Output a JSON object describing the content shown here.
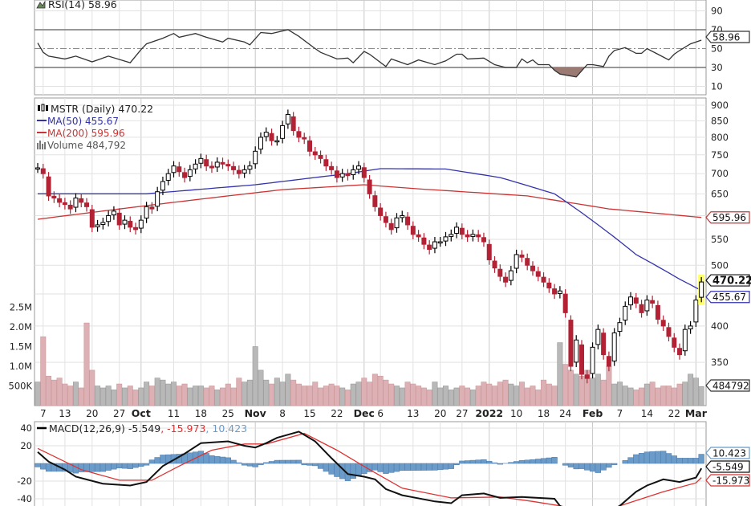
{
  "chart_data": {
    "type": "candlestick",
    "symbol": "MSTR",
    "title": "MSTR (Daily) 470.22",
    "last_price": "470.22",
    "legend": {
      "main": "MSTR (Daily) 470.22",
      "ma50": "MA(50) 455.67",
      "ma200": "MA(200) 595.96",
      "volume": "Volume 484,792",
      "rsi": "RSI(14) 58.96",
      "macd_name": "MACD(12,26,9)",
      "macd_val": " -5.549",
      "macd_sig": ", -15.973",
      "macd_hist": ", 10.423"
    },
    "tags": {
      "price": "470.22",
      "ma50": "455.67",
      "ma200": "595.96",
      "volume": "484792",
      "rsi": "58.96",
      "macd_hist": "10.423",
      "macd": "-5.549",
      "macd_signal": "-15.973"
    },
    "price_ticks": [
      "900",
      "850",
      "800",
      "750",
      "700",
      "650",
      "550",
      "500",
      "400",
      "350"
    ],
    "volume_ticks": [
      "2.5M",
      "2.0M",
      "1.5M",
      "1.0M",
      "500K"
    ],
    "volume_tick_values": [
      2500,
      2000,
      1500,
      1000,
      500
    ],
    "rsi_ticks": [
      "90",
      "70",
      "50",
      "30",
      "10"
    ],
    "macd_ticks": [
      "40",
      "20",
      "-20",
      "-40"
    ],
    "macd_tick_values": [
      40,
      20,
      -20,
      -40
    ],
    "x_labels": [
      {
        "t": "7",
        "i": 1,
        "bold": false
      },
      {
        "t": "13",
        "i": 5,
        "bold": false
      },
      {
        "t": "20",
        "i": 10,
        "bold": false
      },
      {
        "t": "27",
        "i": 15,
        "bold": false
      },
      {
        "t": "Oct",
        "i": 19,
        "bold": true
      },
      {
        "t": "11",
        "i": 25,
        "bold": false
      },
      {
        "t": "18",
        "i": 30,
        "bold": false
      },
      {
        "t": "25",
        "i": 35,
        "bold": false
      },
      {
        "t": "Nov",
        "i": 40,
        "bold": true
      },
      {
        "t": "8",
        "i": 45,
        "bold": false
      },
      {
        "t": "15",
        "i": 50,
        "bold": false
      },
      {
        "t": "22",
        "i": 55,
        "bold": false
      },
      {
        "t": "Dec",
        "i": 60,
        "bold": true
      },
      {
        "t": "6",
        "i": 63,
        "bold": false
      },
      {
        "t": "13",
        "i": 69,
        "bold": false
      },
      {
        "t": "20",
        "i": 74,
        "bold": false
      },
      {
        "t": "27",
        "i": 78,
        "bold": false
      },
      {
        "t": "2022",
        "i": 83,
        "bold": true
      },
      {
        "t": "10",
        "i": 88,
        "bold": false
      },
      {
        "t": "18",
        "i": 93,
        "bold": false
      },
      {
        "t": "24",
        "i": 97,
        "bold": false
      },
      {
        "t": "Feb",
        "i": 102,
        "bold": true
      },
      {
        "t": "7",
        "i": 107,
        "bold": false
      },
      {
        "t": "14",
        "i": 112,
        "bold": false
      },
      {
        "t": "22",
        "i": 117,
        "bold": false
      },
      {
        "t": "Mar",
        "i": 121,
        "bold": true
      }
    ],
    "close": [
      715,
      700,
      645,
      640,
      630,
      625,
      615,
      640,
      630,
      620,
      575,
      580,
      585,
      600,
      610,
      580,
      590,
      575,
      570,
      590,
      620,
      615,
      655,
      680,
      700,
      720,
      705,
      690,
      710,
      725,
      740,
      720,
      715,
      730,
      725,
      720,
      710,
      700,
      710,
      720,
      760,
      800,
      815,
      790,
      790,
      835,
      870,
      820,
      800,
      795,
      760,
      750,
      740,
      720,
      710,
      690,
      700,
      695,
      710,
      720,
      690,
      650,
      620,
      600,
      585,
      570,
      595,
      600,
      580,
      560,
      555,
      540,
      530,
      545,
      545,
      555,
      560,
      575,
      560,
      555,
      560,
      555,
      545,
      510,
      495,
      480,
      470,
      490,
      520,
      515,
      500,
      490,
      480,
      470,
      460,
      450,
      455,
      420,
      345,
      380,
      335,
      330,
      370,
      395,
      360,
      345,
      390,
      405,
      430,
      445,
      435,
      420,
      440,
      435,
      410,
      400,
      385,
      370,
      360,
      395,
      400,
      440,
      470.22
    ],
    "volume_k": [
      600,
      1750,
      750,
      650,
      700,
      550,
      500,
      600,
      450,
      2100,
      900,
      500,
      450,
      500,
      400,
      550,
      450,
      500,
      400,
      450,
      600,
      500,
      700,
      650,
      550,
      600,
      500,
      550,
      450,
      500,
      500,
      450,
      500,
      400,
      450,
      550,
      450,
      700,
      600,
      650,
      1500,
      900,
      650,
      550,
      700,
      600,
      800,
      650,
      550,
      500,
      500,
      600,
      450,
      500,
      550,
      500,
      450,
      400,
      550,
      600,
      700,
      600,
      800,
      750,
      650,
      550,
      500,
      450,
      600,
      550,
      500,
      450,
      400,
      600,
      450,
      500,
      400,
      450,
      500,
      450,
      400,
      500,
      600,
      550,
      500,
      600,
      650,
      550,
      500,
      600,
      450,
      500,
      400,
      650,
      550,
      500,
      1600,
      1050,
      900,
      800,
      750,
      900,
      700,
      800,
      650,
      1000,
      550,
      600,
      500,
      450,
      400,
      450,
      550,
      600,
      450,
      500,
      500,
      450,
      550,
      600,
      800,
      700,
      485
    ],
    "ma50": [
      [
        0,
        650
      ],
      [
        20,
        650
      ],
      [
        40,
        672
      ],
      [
        57,
        700
      ],
      [
        63,
        713
      ],
      [
        75,
        712
      ],
      [
        85,
        690
      ],
      [
        95,
        650
      ],
      [
        103,
        580
      ],
      [
        110,
        520
      ],
      [
        118,
        475
      ],
      [
        122,
        455.67
      ]
    ],
    "ma200": [
      [
        0,
        592
      ],
      [
        25,
        630
      ],
      [
        45,
        660
      ],
      [
        60,
        672
      ],
      [
        70,
        662
      ],
      [
        90,
        645
      ],
      [
        105,
        615
      ],
      [
        122,
        595.96
      ]
    ],
    "rsi": [
      [
        0,
        56
      ],
      [
        1,
        46
      ],
      [
        2,
        42
      ],
      [
        5,
        39
      ],
      [
        7,
        42
      ],
      [
        10,
        36
      ],
      [
        13,
        42
      ],
      [
        17,
        35
      ],
      [
        19,
        49
      ],
      [
        20,
        55
      ],
      [
        23,
        61
      ],
      [
        25,
        66
      ],
      [
        26,
        62
      ],
      [
        29,
        66
      ],
      [
        31,
        62
      ],
      [
        34,
        57
      ],
      [
        35,
        61
      ],
      [
        38,
        57
      ],
      [
        39,
        54
      ],
      [
        41,
        67
      ],
      [
        43,
        66
      ],
      [
        46,
        70
      ],
      [
        48,
        63
      ],
      [
        51,
        50
      ],
      [
        52,
        46
      ],
      [
        55,
        39
      ],
      [
        57,
        40
      ],
      [
        58,
        35
      ],
      [
        60,
        47
      ],
      [
        61,
        44
      ],
      [
        64,
        31
      ],
      [
        65,
        39
      ],
      [
        67,
        35
      ],
      [
        68,
        33
      ],
      [
        70,
        38
      ],
      [
        73,
        33
      ],
      [
        75,
        37
      ],
      [
        77,
        44
      ],
      [
        78,
        44
      ],
      [
        79,
        39
      ],
      [
        82,
        40
      ],
      [
        84,
        33
      ],
      [
        86,
        30
      ],
      [
        88,
        30
      ],
      [
        89,
        39
      ],
      [
        90,
        35
      ],
      [
        91,
        38
      ],
      [
        92,
        33
      ],
      [
        94,
        33
      ],
      [
        95,
        27
      ],
      [
        96,
        23
      ],
      [
        99,
        20
      ],
      [
        101,
        33
      ],
      [
        102,
        33
      ],
      [
        104,
        31
      ],
      [
        105,
        42
      ],
      [
        106,
        48
      ],
      [
        108,
        51
      ],
      [
        110,
        45
      ],
      [
        111,
        45
      ],
      [
        112,
        50
      ],
      [
        114,
        44
      ],
      [
        116,
        38
      ],
      [
        117,
        44
      ],
      [
        118,
        48
      ],
      [
        120,
        55
      ],
      [
        122,
        58.96
      ]
    ],
    "macd": [
      [
        0,
        13
      ],
      [
        2,
        2
      ],
      [
        5,
        -7
      ],
      [
        7,
        -15
      ],
      [
        12,
        -23
      ],
      [
        17,
        -25
      ],
      [
        20,
        -21
      ],
      [
        23,
        -3
      ],
      [
        27,
        11
      ],
      [
        30,
        23
      ],
      [
        35,
        25
      ],
      [
        38,
        20
      ],
      [
        40,
        18
      ],
      [
        42,
        23
      ],
      [
        44,
        29
      ],
      [
        48,
        36
      ],
      [
        51,
        25
      ],
      [
        54,
        6
      ],
      [
        57,
        -12
      ],
      [
        60,
        -15
      ],
      [
        62,
        -18
      ],
      [
        64,
        -29
      ],
      [
        67,
        -36
      ],
      [
        73,
        -43
      ],
      [
        76,
        -45
      ],
      [
        78,
        -36
      ],
      [
        82,
        -34
      ],
      [
        85,
        -39
      ],
      [
        89,
        -38
      ],
      [
        95,
        -40
      ],
      [
        96,
        -48
      ],
      [
        99,
        -58
      ],
      [
        103,
        -62
      ],
      [
        107,
        -48
      ],
      [
        110,
        -32
      ],
      [
        112,
        -25
      ],
      [
        115,
        -18
      ],
      [
        118,
        -21
      ],
      [
        121,
        -16
      ],
      [
        122,
        -5.549
      ]
    ],
    "macd_signal": [
      [
        0,
        17
      ],
      [
        8,
        -7
      ],
      [
        15,
        -19
      ],
      [
        21,
        -19
      ],
      [
        26,
        -3
      ],
      [
        32,
        15
      ],
      [
        38,
        22
      ],
      [
        42,
        22
      ],
      [
        49,
        34
      ],
      [
        55,
        15
      ],
      [
        61,
        -7
      ],
      [
        67,
        -28
      ],
      [
        76,
        -39
      ],
      [
        85,
        -38
      ],
      [
        91,
        -43
      ],
      [
        96,
        -48
      ],
      [
        100,
        -53
      ],
      [
        106,
        -50
      ],
      [
        110,
        -42
      ],
      [
        115,
        -32
      ],
      [
        121,
        -22
      ],
      [
        122,
        -15.973
      ]
    ],
    "colors": {
      "up": "#000000",
      "down": "#b22234",
      "ma50": "#3333aa",
      "ma200": "#cc3333",
      "vol_up": "#b8b8b8",
      "vol_down": "#dcb0b4",
      "hist": "#6b9bc8",
      "rsi_fill": "#9a7a72"
    }
  }
}
